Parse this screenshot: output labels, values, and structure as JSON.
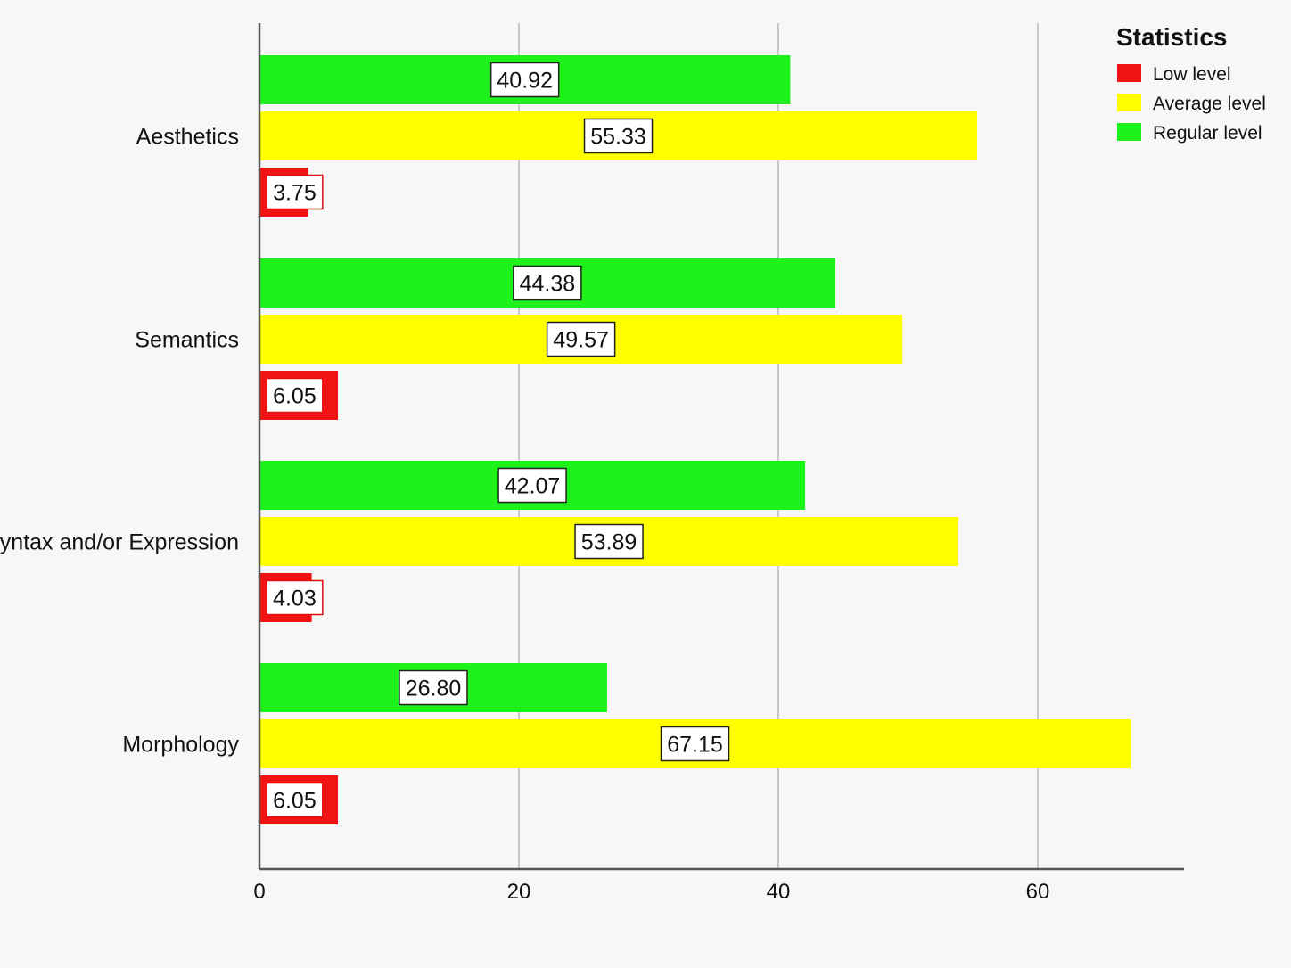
{
  "chart_data": {
    "type": "bar",
    "orientation": "horizontal",
    "categories": [
      "Aesthetics",
      "Semantics",
      "Syntax and/or Expression",
      "Morphology"
    ],
    "series": [
      {
        "name": "Regular level",
        "color": "#1ff21a",
        "values": [
          40.92,
          44.38,
          42.07,
          26.8
        ],
        "labels": [
          "40.92",
          "44.38",
          "42.07",
          "26.80"
        ]
      },
      {
        "name": "Average level",
        "color": "#ffff00",
        "values": [
          55.33,
          49.57,
          53.89,
          67.15
        ],
        "labels": [
          "55.33",
          "49.57",
          "53.89",
          "67.15"
        ]
      },
      {
        "name": "Low level",
        "color": "#f21414",
        "values": [
          3.75,
          6.05,
          4.03,
          6.05
        ],
        "labels": [
          "3.75",
          "6.05",
          "4.03",
          "6.05"
        ]
      }
    ],
    "legend": {
      "title": "Statistics",
      "entries": [
        {
          "label": "Low level",
          "color": "#f21414"
        },
        {
          "label": "Average level",
          "color": "#ffff00"
        },
        {
          "label": "Regular level",
          "color": "#1ff21a"
        }
      ],
      "placement": "top-right"
    },
    "xticks": [
      "0",
      "20",
      "40",
      "60"
    ],
    "xtick_values": [
      0,
      20,
      40,
      60
    ],
    "xlim": [
      0,
      70
    ],
    "grid": true,
    "title": "",
    "xlabel": "",
    "ylabel": ""
  }
}
